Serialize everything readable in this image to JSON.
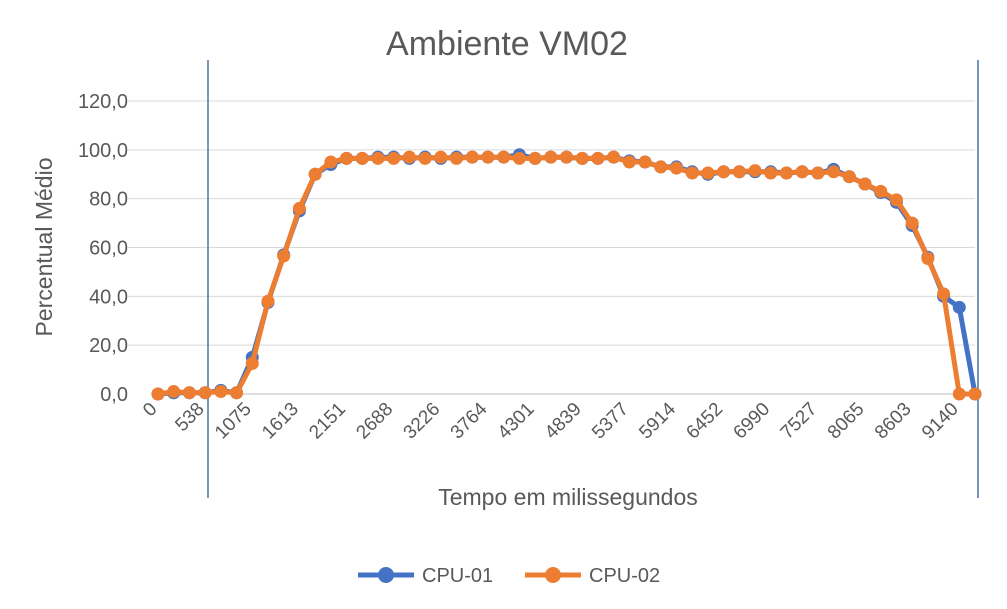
{
  "chart_data": {
    "type": "line",
    "title": "Ambiente VM02",
    "xlabel": "Tempo em milissegundos",
    "ylabel": "Percentual Médio",
    "ylim": [
      0,
      120
    ],
    "y_ticks": [
      "0,0",
      "20,0",
      "40,0",
      "60,0",
      "80,0",
      "100,0",
      "120,0"
    ],
    "y_tick_values": [
      0,
      20,
      40,
      60,
      80,
      100,
      120
    ],
    "x_tick_labels": [
      "0",
      "538",
      "1075",
      "1613",
      "2151",
      "2688",
      "3226",
      "3764",
      "4301",
      "4839",
      "5377",
      "5914",
      "6452",
      "6990",
      "7527",
      "8065",
      "8603",
      "9140"
    ],
    "grid": "horizontal",
    "legend_position": "bottom",
    "colors": {
      "CPU-01": "#4472C4",
      "CPU-02": "#ED7D31",
      "grid": "#d9d9d9",
      "marker_line": "#2e5f96"
    },
    "series": [
      {
        "name": "CPU-01",
        "values": [
          0.0,
          0.5,
          0.5,
          0.5,
          1.5,
          0.5,
          15.0,
          37.5,
          57.0,
          75.0,
          90.0,
          94.0,
          96.5,
          96.5,
          97.0,
          97.0,
          96.5,
          97.0,
          96.5,
          97.0,
          97.0,
          97.0,
          97.0,
          98.0,
          96.5,
          97.0,
          97.0,
          96.5,
          96.5,
          97.0,
          95.5,
          95.0,
          93.0,
          93.0,
          91.0,
          90.0,
          91.0,
          91.0,
          91.0,
          91.0,
          90.5,
          91.0,
          90.5,
          92.0,
          89.0,
          86.0,
          82.5,
          78.5,
          69.0,
          56.0,
          40.0,
          35.5,
          0.0
        ]
      },
      {
        "name": "CPU-02",
        "values": [
          0.0,
          1.0,
          0.5,
          0.5,
          1.0,
          0.5,
          12.5,
          38.0,
          56.5,
          76.0,
          90.0,
          95.0,
          96.5,
          96.5,
          96.5,
          96.5,
          97.0,
          96.5,
          97.0,
          96.5,
          97.0,
          97.0,
          97.0,
          96.5,
          96.5,
          97.0,
          97.0,
          96.5,
          96.5,
          97.0,
          95.0,
          95.0,
          93.0,
          92.5,
          90.5,
          90.5,
          91.0,
          91.0,
          91.5,
          90.5,
          90.5,
          91.0,
          90.5,
          91.0,
          89.0,
          86.0,
          83.0,
          79.5,
          70.0,
          55.5,
          41.0,
          0.0,
          0.0
        ]
      }
    ]
  }
}
